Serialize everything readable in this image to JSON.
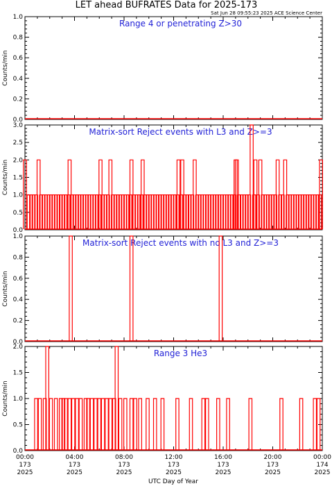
{
  "header": {
    "title": "LET ahead BUFRATES Data for 2025-173",
    "timestamp": "Sat Jun 28 09:55:23 2025 ACE Science Center"
  },
  "colors": {
    "data": "#ff0000",
    "panel_title": "#1f1fd6",
    "axis": "#000000"
  },
  "x_axis": {
    "label": "UTC Day of Year",
    "ticks": [
      {
        "hours": 0,
        "time": "00:00",
        "doy": "173",
        "year": "2025"
      },
      {
        "hours": 4,
        "time": "04:00",
        "doy": "173",
        "year": "2025"
      },
      {
        "hours": 8,
        "time": "08:00",
        "doy": "173",
        "year": "2025"
      },
      {
        "hours": 12,
        "time": "12:00",
        "doy": "173",
        "year": "2025"
      },
      {
        "hours": 16,
        "time": "16:00",
        "doy": "173",
        "year": "2025"
      },
      {
        "hours": 20,
        "time": "20:00",
        "doy": "173",
        "year": "2025"
      },
      {
        "hours": 24,
        "time": "00:00",
        "doy": "174",
        "year": "2025"
      }
    ]
  },
  "chart_data": [
    {
      "type": "line",
      "title": "Range 4 or  penetrating Z>30",
      "ylabel": "Counts/min",
      "ylim": [
        0,
        1
      ],
      "yticks": [
        "0.0",
        "0.2",
        "0.4",
        "0.6",
        "0.8",
        "1.0"
      ],
      "spikes": []
    },
    {
      "type": "line",
      "title": "Matrix-sort Reject events with L3 and Z>=3",
      "ylabel": "Counts/min",
      "ylim": [
        0,
        3
      ],
      "yticks": [
        "0.0",
        "0.5",
        "1.0",
        "1.5",
        "2.0",
        "2.5",
        "3.0"
      ],
      "spikes": [
        [
          0.0,
          2
        ],
        [
          0.3,
          1
        ],
        [
          0.5,
          1
        ],
        [
          0.7,
          1
        ],
        [
          0.9,
          1
        ],
        [
          1.1,
          2
        ],
        [
          1.3,
          1
        ],
        [
          1.5,
          1
        ],
        [
          1.7,
          1
        ],
        [
          1.9,
          1
        ],
        [
          2.1,
          1
        ],
        [
          2.3,
          1
        ],
        [
          2.5,
          1
        ],
        [
          2.7,
          1
        ],
        [
          2.9,
          1
        ],
        [
          3.1,
          1
        ],
        [
          3.3,
          1
        ],
        [
          3.5,
          1
        ],
        [
          3.6,
          2
        ],
        [
          3.8,
          1
        ],
        [
          4.0,
          1
        ],
        [
          4.2,
          1
        ],
        [
          4.4,
          1
        ],
        [
          4.6,
          1
        ],
        [
          4.8,
          1
        ],
        [
          5.0,
          1
        ],
        [
          5.2,
          1
        ],
        [
          5.4,
          1
        ],
        [
          5.6,
          1
        ],
        [
          5.8,
          1
        ],
        [
          6.0,
          1
        ],
        [
          6.1,
          2
        ],
        [
          6.3,
          1
        ],
        [
          6.5,
          1
        ],
        [
          6.7,
          1
        ],
        [
          6.9,
          2
        ],
        [
          7.1,
          1
        ],
        [
          7.3,
          1
        ],
        [
          7.5,
          1
        ],
        [
          7.7,
          1
        ],
        [
          7.9,
          1
        ],
        [
          8.1,
          1
        ],
        [
          8.3,
          1
        ],
        [
          8.5,
          1
        ],
        [
          8.6,
          2
        ],
        [
          8.8,
          1
        ],
        [
          9.0,
          1
        ],
        [
          9.2,
          1
        ],
        [
          9.4,
          1
        ],
        [
          9.5,
          2
        ],
        [
          9.7,
          1
        ],
        [
          9.9,
          1
        ],
        [
          10.1,
          1
        ],
        [
          10.3,
          1
        ],
        [
          10.5,
          1
        ],
        [
          10.7,
          1
        ],
        [
          10.9,
          1
        ],
        [
          11.1,
          1
        ],
        [
          11.3,
          1
        ],
        [
          11.5,
          1
        ],
        [
          11.7,
          1
        ],
        [
          11.9,
          1
        ],
        [
          12.1,
          1
        ],
        [
          12.3,
          1
        ],
        [
          12.4,
          2
        ],
        [
          12.6,
          1
        ],
        [
          12.7,
          2
        ],
        [
          12.9,
          1
        ],
        [
          13.1,
          1
        ],
        [
          13.3,
          1
        ],
        [
          13.5,
          1
        ],
        [
          13.7,
          2
        ],
        [
          13.9,
          1
        ],
        [
          14.1,
          1
        ],
        [
          14.3,
          1
        ],
        [
          14.5,
          1
        ],
        [
          14.7,
          1
        ],
        [
          14.9,
          1
        ],
        [
          15.1,
          1
        ],
        [
          15.3,
          1
        ],
        [
          15.5,
          1
        ],
        [
          15.7,
          1
        ],
        [
          15.9,
          1
        ],
        [
          16.1,
          1
        ],
        [
          16.3,
          1
        ],
        [
          16.5,
          1
        ],
        [
          16.7,
          1
        ],
        [
          16.9,
          1
        ],
        [
          17.0,
          2
        ],
        [
          17.1,
          2
        ],
        [
          17.3,
          1
        ],
        [
          17.5,
          1
        ],
        [
          17.7,
          1
        ],
        [
          17.9,
          1
        ],
        [
          18.1,
          1
        ],
        [
          18.3,
          3
        ],
        [
          18.5,
          1
        ],
        [
          18.6,
          2
        ],
        [
          18.8,
          1
        ],
        [
          19.0,
          2
        ],
        [
          19.2,
          1
        ],
        [
          19.4,
          1
        ],
        [
          19.6,
          1
        ],
        [
          19.8,
          1
        ],
        [
          20.0,
          1
        ],
        [
          20.2,
          1
        ],
        [
          20.4,
          2
        ],
        [
          20.6,
          1
        ],
        [
          20.8,
          1
        ],
        [
          21.0,
          2
        ],
        [
          21.2,
          1
        ],
        [
          21.4,
          1
        ],
        [
          21.6,
          1
        ],
        [
          21.8,
          1
        ],
        [
          22.0,
          1
        ],
        [
          22.2,
          1
        ],
        [
          22.4,
          1
        ],
        [
          22.6,
          1
        ],
        [
          22.8,
          1
        ],
        [
          23.0,
          1
        ],
        [
          23.2,
          1
        ],
        [
          23.4,
          1
        ],
        [
          23.6,
          1
        ],
        [
          23.8,
          1
        ],
        [
          23.9,
          2
        ]
      ]
    },
    {
      "type": "line",
      "title": "Matrix-sort Reject events with no L3 and Z>=3",
      "ylabel": "Counts/min",
      "ylim": [
        0,
        1
      ],
      "yticks": [
        "0.0",
        "0.2",
        "0.4",
        "0.6",
        "0.8",
        "1.0"
      ],
      "spikes": [
        [
          3.7,
          1
        ],
        [
          8.6,
          1
        ],
        [
          15.8,
          1
        ]
      ]
    },
    {
      "type": "line",
      "title": "Range 3 He3",
      "ylabel": "Counts/min",
      "ylim": [
        0,
        2
      ],
      "yticks": [
        "0.0",
        "0.5",
        "1.0",
        "1.5",
        "2.0"
      ],
      "spikes": [
        [
          0.9,
          1
        ],
        [
          1.2,
          1
        ],
        [
          1.6,
          1
        ],
        [
          1.8,
          2
        ],
        [
          2.1,
          1
        ],
        [
          2.5,
          1
        ],
        [
          2.9,
          1
        ],
        [
          3.1,
          1
        ],
        [
          3.3,
          1
        ],
        [
          3.6,
          1
        ],
        [
          3.9,
          1
        ],
        [
          4.2,
          1
        ],
        [
          4.5,
          1
        ],
        [
          4.9,
          1
        ],
        [
          5.1,
          1
        ],
        [
          5.4,
          1
        ],
        [
          5.7,
          1
        ],
        [
          6.0,
          1
        ],
        [
          6.3,
          1
        ],
        [
          6.6,
          1
        ],
        [
          6.9,
          1
        ],
        [
          7.2,
          1
        ],
        [
          7.4,
          2
        ],
        [
          7.7,
          1
        ],
        [
          8.1,
          1
        ],
        [
          8.6,
          1
        ],
        [
          8.9,
          1
        ],
        [
          9.3,
          1
        ],
        [
          9.9,
          1
        ],
        [
          10.5,
          1
        ],
        [
          11.1,
          1
        ],
        [
          12.3,
          1
        ],
        [
          13.4,
          1
        ],
        [
          14.4,
          1
        ],
        [
          14.7,
          1
        ],
        [
          15.6,
          1
        ],
        [
          16.4,
          1
        ],
        [
          18.2,
          1
        ],
        [
          20.7,
          1
        ],
        [
          22.3,
          1
        ],
        [
          23.4,
          1
        ],
        [
          23.7,
          1
        ]
      ]
    }
  ]
}
